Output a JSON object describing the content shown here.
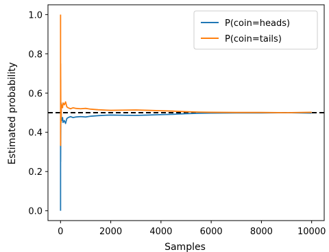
{
  "chart_data": {
    "type": "line",
    "title": "",
    "xlabel": "Samples",
    "ylabel": "Estimated probability",
    "xlim": [
      -500,
      10500
    ],
    "ylim": [
      -0.05,
      1.05
    ],
    "x_ticks": [
      0,
      2000,
      4000,
      6000,
      8000,
      10000
    ],
    "x_tick_labels": [
      "0",
      "2000",
      "4000",
      "6000",
      "8000",
      "10000"
    ],
    "y_ticks": [
      0.0,
      0.2,
      0.4,
      0.6,
      0.8,
      1.0
    ],
    "y_tick_labels": [
      "0.0",
      "0.2",
      "0.4",
      "0.6",
      "0.8",
      "1.0"
    ],
    "grid": false,
    "legend_position": "upper-right",
    "reference_line": {
      "y": 0.5,
      "style": "dashed",
      "color": "#000000"
    },
    "series": [
      {
        "name": "P(coin=heads)",
        "color": "#1f77b4",
        "x": [
          1,
          2,
          3,
          4,
          6,
          8,
          12,
          20,
          30,
          50,
          80,
          100,
          150,
          200,
          250,
          300,
          400,
          500,
          600,
          800,
          1000,
          1200,
          1500,
          1800,
          2000,
          2500,
          3000,
          3500,
          4000,
          4500,
          5000,
          5500,
          6000,
          7000,
          8000,
          9000,
          10000
        ],
        "y": [
          0.0,
          0.5,
          0.667,
          0.25,
          0.333,
          0.375,
          0.5,
          0.55,
          0.467,
          0.46,
          0.475,
          0.45,
          0.46,
          0.445,
          0.47,
          0.475,
          0.48,
          0.475,
          0.478,
          0.48,
          0.478,
          0.482,
          0.485,
          0.487,
          0.488,
          0.487,
          0.486,
          0.488,
          0.49,
          0.492,
          0.495,
          0.497,
          0.498,
          0.499,
          0.499,
          0.5,
          0.498
        ]
      },
      {
        "name": "P(coin=tails)",
        "color": "#ff7f0e",
        "x": [
          1,
          2,
          3,
          4,
          6,
          8,
          12,
          20,
          30,
          50,
          80,
          100,
          150,
          200,
          250,
          300,
          400,
          500,
          600,
          800,
          1000,
          1200,
          1500,
          1800,
          2000,
          2500,
          3000,
          3500,
          4000,
          4500,
          5000,
          5500,
          6000,
          7000,
          8000,
          9000,
          10000
        ],
        "y": [
          1.0,
          0.5,
          0.333,
          0.75,
          0.667,
          0.625,
          0.5,
          0.45,
          0.533,
          0.54,
          0.525,
          0.55,
          0.54,
          0.555,
          0.53,
          0.525,
          0.52,
          0.525,
          0.522,
          0.52,
          0.522,
          0.518,
          0.515,
          0.513,
          0.512,
          0.513,
          0.514,
          0.512,
          0.51,
          0.508,
          0.505,
          0.503,
          0.502,
          0.501,
          0.501,
          0.5,
          0.502
        ]
      }
    ]
  }
}
